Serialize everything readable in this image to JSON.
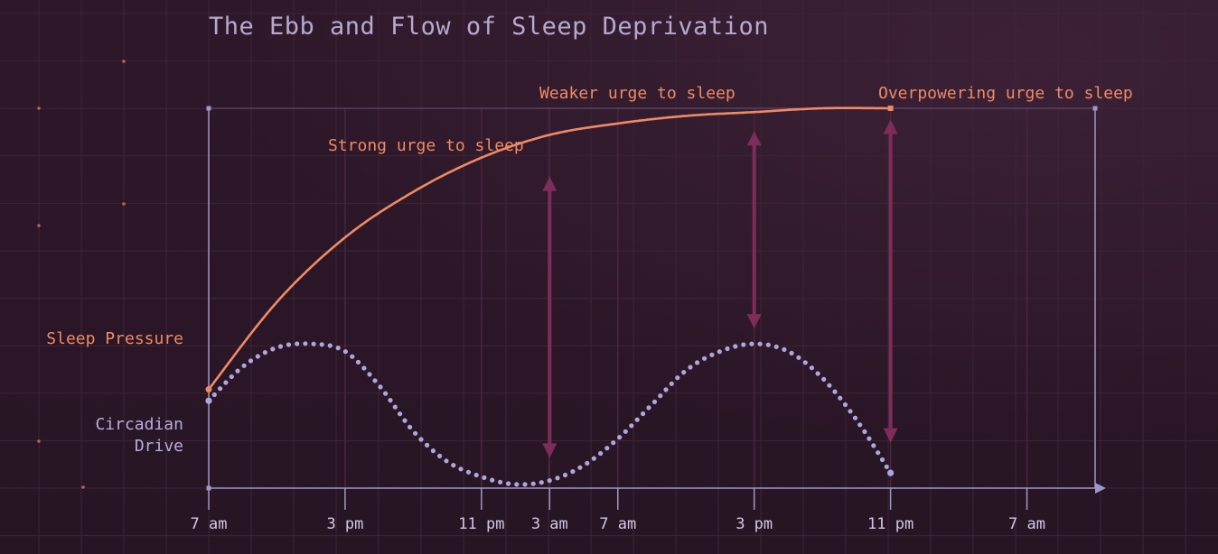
{
  "colors": {
    "background": "#2a1727",
    "grid": "#3c2538",
    "grid_accent": "#4a2542",
    "axis": "#9f97c9",
    "sleep_pressure": "#ef8a65",
    "circadian": "#aea6dc",
    "arrows": "#7e2c5a",
    "title": "#b6a9cf"
  },
  "chart_data": {
    "type": "line",
    "title": "The Ebb and Flow of Sleep Deprivation",
    "xlabel": "",
    "ylabel": "",
    "x_ticks": [
      "7 am",
      "3 pm",
      "11 pm",
      "3 am",
      "7 am",
      "3 pm",
      "11 pm",
      "7 am"
    ],
    "x_tick_hours": [
      0,
      8,
      16,
      20,
      24,
      32,
      40,
      48
    ],
    "xlim": [
      0,
      52
    ],
    "ylim": [
      0,
      100
    ],
    "grid": true,
    "series": [
      {
        "name": "Sleep Pressure",
        "style": "solid",
        "x": [
          0,
          4,
          8,
          12,
          16,
          20,
          24,
          28,
          32,
          36,
          40
        ],
        "y": [
          26,
          49,
          66,
          78,
          87,
          93,
          96,
          98,
          99,
          100,
          100
        ]
      },
      {
        "name": "Circadian Drive",
        "style": "dotted",
        "x": [
          0,
          2,
          4,
          6,
          8,
          10,
          12,
          14,
          16,
          18,
          20,
          22,
          24,
          26,
          28,
          30,
          32,
          34,
          36,
          38,
          40
        ],
        "y": [
          23,
          32,
          37,
          38,
          36,
          27,
          15,
          7,
          3,
          1,
          2,
          6,
          13,
          22,
          31,
          36,
          38,
          36,
          29,
          18,
          4
        ]
      }
    ],
    "annotations": [
      {
        "text": "Strong urge to sleep",
        "x": 20,
        "y_from": 8,
        "y_to": 82
      },
      {
        "text": "Weaker urge to sleep",
        "x": 32,
        "y_from": 42,
        "y_to": 94
      },
      {
        "text": "Overpowering urge to sleep",
        "x": 40,
        "y_from": 12,
        "y_to": 97
      }
    ]
  }
}
